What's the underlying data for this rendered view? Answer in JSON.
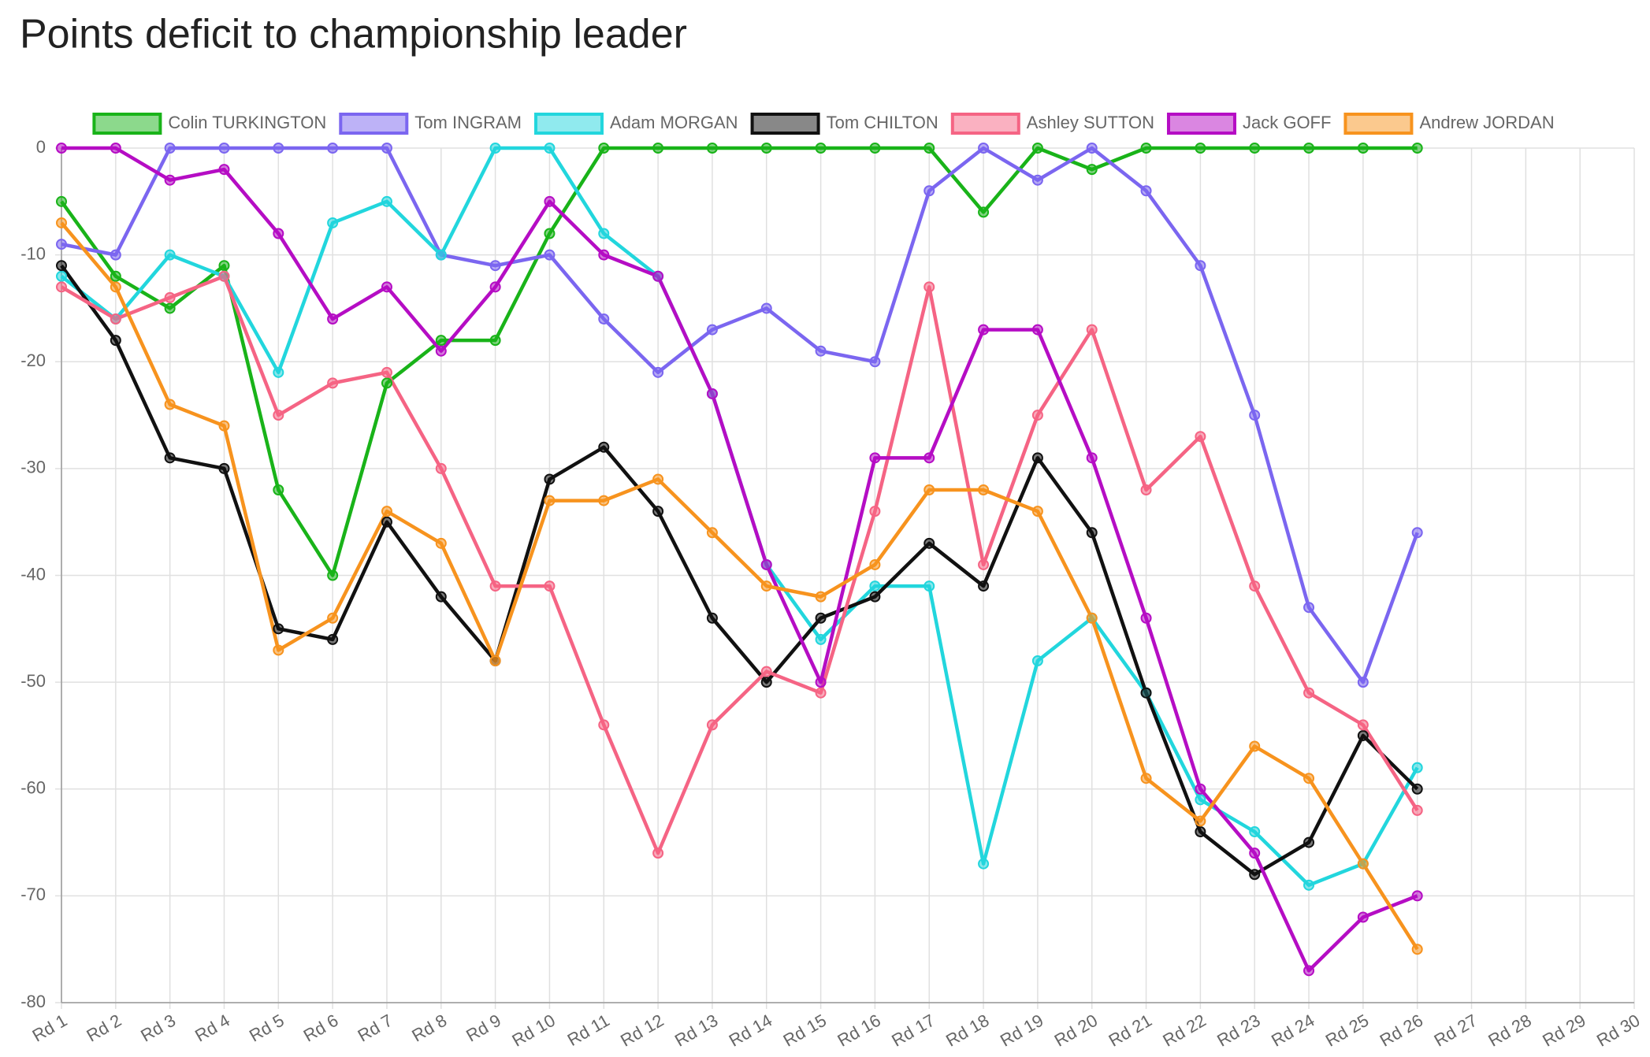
{
  "chart_data": {
    "type": "line",
    "title": "Points deficit to championship leader",
    "categories": [
      "Rd 1",
      "Rd 2",
      "Rd 3",
      "Rd 4",
      "Rd 5",
      "Rd 6",
      "Rd 7",
      "Rd 8",
      "Rd 9",
      "Rd 10",
      "Rd 11",
      "Rd 12",
      "Rd 13",
      "Rd 14",
      "Rd 15",
      "Rd 16",
      "Rd 17",
      "Rd 18",
      "Rd 19",
      "Rd 20",
      "Rd 21",
      "Rd 22",
      "Rd 23",
      "Rd 24",
      "Rd 25",
      "Rd 26",
      "Rd 27",
      "Rd 28",
      "Rd 29",
      "Rd 30"
    ],
    "ylim": [
      -80,
      0
    ],
    "yticks": [
      -80,
      -70,
      -60,
      -50,
      -40,
      -30,
      -20,
      -10,
      0
    ],
    "grid": true,
    "legend": "top",
    "series": [
      {
        "name": "Colin TURKINGTON",
        "color": "#19b319",
        "values": [
          -5,
          -12,
          -15,
          -11,
          -32,
          -40,
          -22,
          -18,
          -18,
          -8,
          0,
          0,
          0,
          0,
          0,
          0,
          0,
          -6,
          0,
          -2,
          0,
          0,
          0,
          0,
          0,
          0,
          null,
          null,
          null,
          null
        ]
      },
      {
        "name": "Tom INGRAM",
        "color": "#7b66f0",
        "values": [
          -9,
          -10,
          0,
          0,
          0,
          0,
          0,
          -10,
          -11,
          -10,
          -16,
          -21,
          -17,
          -15,
          -19,
          -20,
          -4,
          0,
          -3,
          0,
          -4,
          -11,
          -25,
          -43,
          -50,
          -36,
          null,
          null,
          null,
          null
        ]
      },
      {
        "name": "Adam MORGAN",
        "color": "#22d6dd",
        "values": [
          -12,
          -16,
          -10,
          -12,
          -21,
          -7,
          -5,
          -10,
          0,
          0,
          -8,
          -12,
          -23,
          -39,
          -46,
          -41,
          -41,
          -67,
          -48,
          -44,
          -51,
          -61,
          -64,
          -69,
          -67,
          -58,
          null,
          null,
          null,
          null
        ]
      },
      {
        "name": "Tom CHILTON",
        "color": "#111111",
        "values": [
          -11,
          -18,
          -29,
          -30,
          -45,
          -46,
          -35,
          -42,
          -48,
          -31,
          -28,
          -34,
          -44,
          -50,
          -44,
          -42,
          -37,
          -41,
          -29,
          -36,
          -51,
          -64,
          -68,
          -65,
          -55,
          -60,
          null,
          null,
          null,
          null
        ]
      },
      {
        "name": "Ashley SUTTON",
        "color": "#f56484",
        "values": [
          -13,
          -16,
          -14,
          -12,
          -25,
          -22,
          -21,
          -30,
          -41,
          -41,
          -54,
          -66,
          -54,
          -49,
          -51,
          -34,
          -13,
          -39,
          -25,
          -17,
          -32,
          -27,
          -41,
          -51,
          -54,
          -62,
          null,
          null,
          null,
          null
        ]
      },
      {
        "name": "Jack GOFF",
        "color": "#b50dc4",
        "values": [
          0,
          0,
          -3,
          -2,
          -8,
          -16,
          -13,
          -19,
          -13,
          -5,
          -10,
          -12,
          -23,
          -39,
          -50,
          -29,
          -29,
          -17,
          -17,
          -29,
          -44,
          -60,
          -66,
          -77,
          -72,
          -70,
          null,
          null,
          null,
          null
        ]
      },
      {
        "name": "Andrew JORDAN",
        "color": "#f7931e",
        "values": [
          -7,
          -13,
          -24,
          -26,
          -47,
          -44,
          -34,
          -37,
          -48,
          -33,
          -33,
          -31,
          -36,
          -41,
          -42,
          -39,
          -32,
          -32,
          -34,
          -44,
          -59,
          -63,
          -56,
          -59,
          -67,
          -75,
          null,
          null,
          null,
          null
        ]
      }
    ]
  }
}
